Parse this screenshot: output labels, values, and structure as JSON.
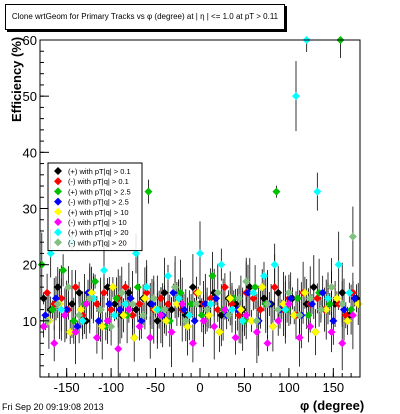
{
  "chart_data": {
    "type": "scatter",
    "title": "Clone wrtGeom for Primary Tracks vs φ (degree) at |  η | <= 1.0 at pT > 0.11",
    "xlabel": "φ (degree)",
    "ylabel": "Efficiency (%)",
    "xlim": [
      -180,
      180
    ],
    "ylim": [
      0,
      60
    ],
    "x_ticks": [
      "-150",
      "-100",
      "-50",
      "0",
      "50",
      "100",
      "150"
    ],
    "y_ticks": [
      "10",
      "20",
      "30",
      "40",
      "50",
      "60"
    ],
    "grid": false,
    "legend_position": "left-middle",
    "series": [
      {
        "name": "(+) with pT|q| > 0.1",
        "color": "#000000",
        "marker": "diamond",
        "x": [
          -176,
          -168,
          -160,
          -152,
          -144,
          -136,
          -128,
          -120,
          -112,
          -104,
          -96,
          -88,
          -80,
          -72,
          -64,
          -56,
          -48,
          -40,
          -32,
          -24,
          -16,
          -8,
          0,
          8,
          16,
          24,
          32,
          40,
          48,
          56,
          64,
          72,
          80,
          88,
          96,
          104,
          112,
          120,
          128,
          136,
          144,
          152,
          160,
          168,
          176
        ],
        "values": [
          14,
          12,
          16,
          11,
          13,
          15,
          10,
          14,
          12,
          16,
          13,
          11,
          15,
          12,
          14,
          13,
          10,
          15,
          12,
          14,
          11,
          16,
          13,
          12,
          15,
          11,
          14,
          13,
          12,
          16,
          10,
          14,
          13,
          15,
          12,
          14,
          11,
          13,
          16,
          12,
          14,
          13,
          15,
          11,
          14
        ]
      },
      {
        "name": "(-) with pT|q| > 0.1",
        "color": "#ff0000",
        "marker": "diamond",
        "x": [
          -172,
          -164,
          -156,
          -148,
          -140,
          -132,
          -124,
          -116,
          -108,
          -100,
          -92,
          -84,
          -76,
          -68,
          -60,
          -52,
          -44,
          -36,
          -28,
          -20,
          -12,
          -4,
          4,
          12,
          20,
          28,
          36,
          44,
          52,
          60,
          68,
          76,
          84,
          92,
          100,
          108,
          116,
          124,
          132,
          140,
          148,
          156,
          164,
          172
        ],
        "values": [
          15,
          13,
          14,
          12,
          16,
          11,
          14,
          13,
          15,
          12,
          14,
          16,
          11,
          13,
          15,
          12,
          14,
          13,
          16,
          12,
          11,
          15,
          13,
          14,
          12,
          16,
          13,
          11,
          15,
          14,
          12,
          13,
          16,
          12,
          14,
          11,
          15,
          13,
          14,
          12,
          16,
          13,
          11,
          15
        ]
      },
      {
        "name": "(+) with pT|q| > 2.5",
        "color": "#00c000",
        "marker": "diamond",
        "x": [
          -178,
          -166,
          -154,
          -142,
          -130,
          -118,
          -106,
          -94,
          -82,
          -70,
          -58,
          -46,
          -34,
          -22,
          -10,
          2,
          14,
          26,
          38,
          50,
          62,
          74,
          86,
          98,
          110,
          122,
          134,
          146,
          158,
          170
        ],
        "values": [
          20,
          12,
          19,
          10,
          13,
          17,
          9,
          14,
          11,
          16,
          33,
          12,
          10,
          15,
          13,
          11,
          18,
          12,
          14,
          10,
          16,
          13,
          33,
          12,
          14,
          11,
          15,
          13,
          60,
          12
        ]
      },
      {
        "name": "(-) with pT|q| > 2.5",
        "color": "#0000ff",
        "marker": "diamond",
        "x": [
          -174,
          -162,
          -150,
          -138,
          -126,
          -114,
          -102,
          -90,
          -78,
          -66,
          -54,
          -42,
          -30,
          -18,
          -6,
          6,
          18,
          30,
          42,
          54,
          66,
          78,
          90,
          102,
          114,
          126,
          138,
          150,
          162,
          174
        ],
        "values": [
          11,
          14,
          12,
          9,
          15,
          10,
          13,
          12,
          14,
          10,
          13,
          11,
          15,
          12,
          10,
          13,
          14,
          11,
          12,
          15,
          10,
          13,
          12,
          14,
          11,
          13,
          15,
          10,
          12,
          14
        ]
      },
      {
        "name": "(+) with pT|q| > 10",
        "color": "#ffff00",
        "marker": "diamond",
        "x": [
          -170,
          -158,
          -146,
          -134,
          -122,
          -110,
          -98,
          -86,
          -74,
          -62,
          -50,
          -38,
          -26,
          -14,
          -2,
          10,
          22,
          34,
          46,
          58,
          70,
          82,
          94,
          106,
          118,
          130,
          142,
          154,
          166,
          178
        ],
        "values": [
          10,
          13,
          8,
          12,
          15,
          9,
          16,
          11,
          7,
          14,
          12,
          10,
          13,
          9,
          15,
          11,
          8,
          14,
          12,
          10,
          16,
          9,
          13,
          11,
          15,
          8,
          12,
          14,
          10,
          13
        ]
      },
      {
        "name": "(-) with pT|q| > 10",
        "color": "#ff00ff",
        "marker": "diamond",
        "x": [
          -176,
          -164,
          -152,
          -140,
          -128,
          -116,
          -104,
          -92,
          -80,
          -68,
          -56,
          -44,
          -32,
          -20,
          -8,
          4,
          16,
          28,
          40,
          52,
          64,
          76,
          88,
          100,
          112,
          124,
          136,
          148,
          160,
          172
        ],
        "values": [
          9,
          6,
          11,
          8,
          13,
          7,
          10,
          5,
          12,
          9,
          7,
          11,
          8,
          13,
          6,
          10,
          9,
          12,
          7,
          11,
          8,
          6,
          10,
          13,
          7,
          9,
          12,
          8,
          6,
          11
        ]
      },
      {
        "name": "(+) with pT|q| > 20",
        "color": "#00ffff",
        "marker": "diamond",
        "x": [
          -168,
          -156,
          -144,
          -132,
          -120,
          -108,
          -96,
          -84,
          -72,
          -60,
          -48,
          -36,
          -24,
          -12,
          0,
          12,
          24,
          36,
          48,
          60,
          72,
          84,
          96,
          108,
          120,
          132,
          144,
          156,
          168
        ],
        "values": [
          22,
          12,
          24,
          10,
          14,
          19,
          11,
          13,
          22,
          16,
          12,
          18,
          14,
          11,
          22,
          13,
          20,
          12,
          10,
          15,
          18,
          20,
          12,
          50,
          60,
          33,
          14,
          20,
          15
        ]
      },
      {
        "name": "(-) with pT|q| > 20",
        "color": "#80c080",
        "marker": "diamond",
        "x": [
          -172,
          -160,
          -148,
          -136,
          -124,
          -112,
          -100,
          -88,
          -76,
          -64,
          -52,
          -40,
          -28,
          -16,
          -4,
          8,
          20,
          32,
          44,
          52,
          64,
          76,
          88,
          100,
          112,
          124,
          136,
          148,
          160,
          172
        ],
        "values": [
          10,
          13,
          16,
          11,
          14,
          12,
          9,
          15,
          13,
          11,
          14,
          12,
          16,
          10,
          13,
          12,
          15,
          11,
          14,
          17,
          10,
          13,
          12,
          15,
          11,
          14,
          12,
          16,
          13,
          25
        ]
      }
    ]
  },
  "timestamp": "Fri Sep 20 09:19:08 2013"
}
